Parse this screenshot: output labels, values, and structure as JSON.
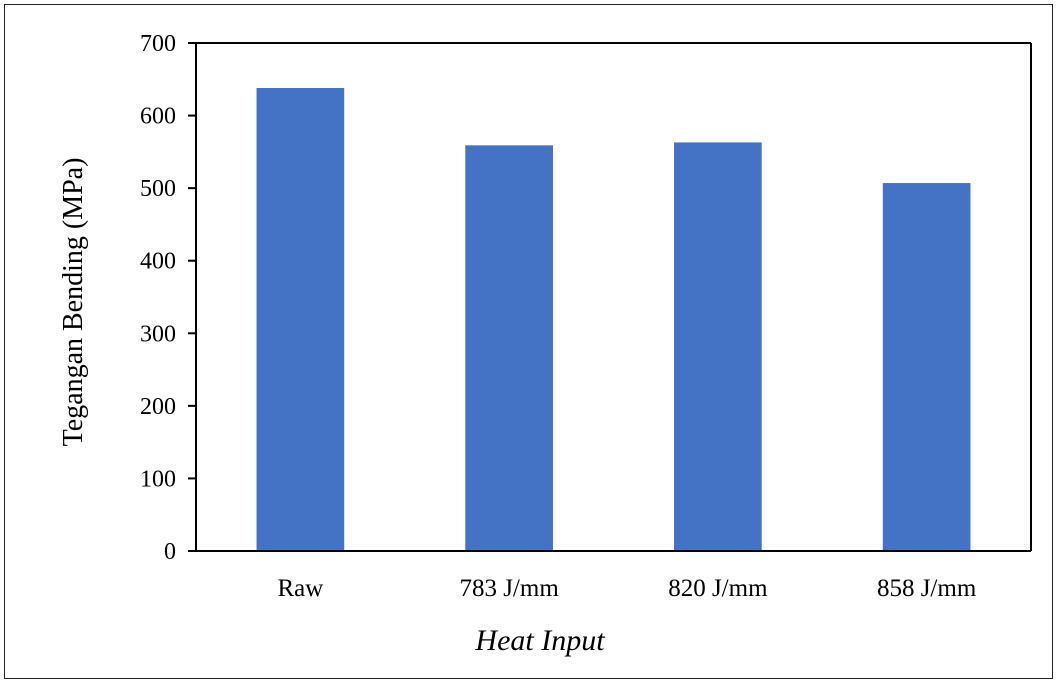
{
  "chart_data": {
    "type": "bar",
    "categories": [
      "Raw",
      "783 J/mm",
      "820 J/mm",
      "858 J/mm"
    ],
    "values": [
      638,
      559,
      563,
      507
    ],
    "xlabel": "Heat Input",
    "ylabel": "Tegangan Bending (MPa)",
    "ylim": [
      0,
      700
    ],
    "yticks": [
      0,
      100,
      200,
      300,
      400,
      500,
      600,
      700
    ],
    "grid": false,
    "bar_color": "#4472C4"
  }
}
